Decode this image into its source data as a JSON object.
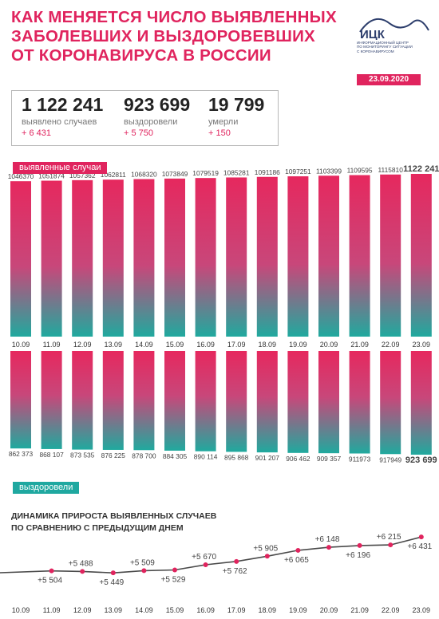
{
  "title": {
    "line1": "Как меняется число выявленных",
    "line2": "заболевших и выздоровевших",
    "line3": "от коронавируса в России"
  },
  "logo": {
    "abbr": "ИЦК",
    "org_line1": "информационный центр",
    "org_line2": "по мониторингу ситуации",
    "org_line3": "с коронавирусом",
    "icon": "mountain-arc-icon"
  },
  "date": "23.09.2020",
  "stats": {
    "detected": {
      "value": "1 122 241",
      "label": "выявлено случаев",
      "delta": "+ 6 431"
    },
    "recovered": {
      "value": "923 699",
      "label": "выздоровели",
      "delta": "+ 5 750"
    },
    "died": {
      "value": "19 799",
      "label": "умерли",
      "delta": "+ 150"
    }
  },
  "labels": {
    "cases": "выявленные случаи",
    "recovered": "выздоровели"
  },
  "line_chart_title": {
    "line1": "Динамика прироста выявленных случаев",
    "line2": "по сравнению с предыдущим днем"
  },
  "colors": {
    "accent": "#e0245e",
    "teal": "#1fa8a0",
    "line": "#4a4a4a"
  },
  "chart_data": [
    {
      "type": "bar",
      "categories": [
        "10.09",
        "11.09",
        "12.09",
        "13.09",
        "14.09",
        "15.09",
        "16.09",
        "17.09",
        "18.09",
        "19.09",
        "20.09",
        "21.09",
        "22.09",
        "23.09"
      ],
      "series": [
        {
          "name": "выявленные случаи",
          "values": [
            1046370,
            1051874,
            1057362,
            1062811,
            1068320,
            1073849,
            1079519,
            1085281,
            1091186,
            1097251,
            1103399,
            1109595,
            1115810,
            1122241
          ],
          "labels": [
            "1046370",
            "1051874",
            "1057362",
            "1062811",
            "1068320",
            "1073849",
            "1079519",
            "1085281",
            "1091186",
            "1097251",
            "1103399",
            "1109595",
            "1115810",
            "1122 241"
          ]
        }
      ]
    },
    {
      "type": "bar",
      "categories": [
        "10.09",
        "11.09",
        "12.09",
        "13.09",
        "14.09",
        "15.09",
        "16.09",
        "17.09",
        "18.09",
        "19.09",
        "20.09",
        "21.09",
        "22.09",
        "23.09"
      ],
      "series": [
        {
          "name": "выздоровели",
          "values": [
            862373,
            868107,
            873535,
            876225,
            878700,
            884305,
            890114,
            895868,
            901207,
            906462,
            909357,
            911973,
            917949,
            923699
          ],
          "labels": [
            "862 373",
            "868 107",
            "873 535",
            "876 225",
            "878 700",
            "884 305",
            "890 114",
            "895 868",
            "901 207",
            "906 462",
            "909 357",
            "911973",
            "917949",
            "923 699"
          ]
        }
      ]
    },
    {
      "type": "line",
      "title": "Динамика прироста выявленных случаев по сравнению с предыдущим днем",
      "x": [
        "10.09",
        "11.09",
        "12.09",
        "13.09",
        "14.09",
        "15.09",
        "16.09",
        "17.09",
        "18.09",
        "19.09",
        "20.09",
        "21.09",
        "22.09",
        "23.09"
      ],
      "series": [
        {
          "values": [
            null,
            5504,
            5488,
            5449,
            5509,
            5529,
            5670,
            5762,
            5905,
            6065,
            6148,
            6196,
            6215,
            6431
          ],
          "labels": [
            "",
            "+5 504",
            "+5 488",
            "+5 449",
            "+5 509",
            "+5 529",
            "+5 670",
            "+5 762",
            "+5 905",
            "+6 065",
            "+6 148",
            "+6 196",
            "+6 215",
            "+6 431"
          ],
          "label_positions": [
            "",
            "below",
            "above",
            "below",
            "above",
            "below",
            "above",
            "below",
            "above",
            "below",
            "above",
            "below",
            "above",
            "below"
          ]
        }
      ],
      "grid": false
    }
  ]
}
